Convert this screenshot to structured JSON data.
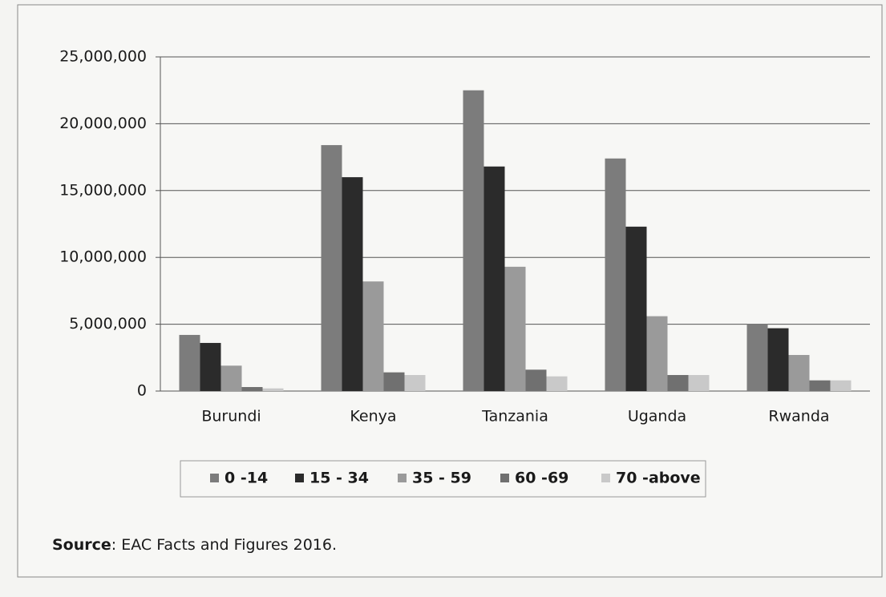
{
  "chart_data": {
    "type": "bar",
    "categories": [
      "Burundi",
      "Kenya",
      "Tanzania",
      "Uganda",
      "Rwanda"
    ],
    "series": [
      {
        "name": "0 -14",
        "color": "#7c7c7c",
        "values": [
          4200000,
          18400000,
          22500000,
          17400000,
          5000000
        ]
      },
      {
        "name": "15 - 34",
        "color": "#2b2b2b",
        "values": [
          3600000,
          16000000,
          16800000,
          12300000,
          4700000
        ]
      },
      {
        "name": "35 - 59",
        "color": "#9a9a9a",
        "values": [
          1900000,
          8200000,
          9300000,
          5600000,
          2700000
        ]
      },
      {
        "name": "60 -69",
        "color": "#707070",
        "values": [
          300000,
          1400000,
          1600000,
          1200000,
          800000
        ]
      },
      {
        "name": "70 -above",
        "color": "#c9c9c9",
        "values": [
          200000,
          1200000,
          1100000,
          1200000,
          800000
        ]
      }
    ],
    "ylim": [
      0,
      25000000
    ],
    "yticks": [
      0,
      {
        "value": 5000000,
        "label": "5,000,000"
      },
      {
        "value": 10000000,
        "label": "10,000,000"
      },
      {
        "value": 15000000,
        "label": "15,000,000"
      },
      {
        "value": 20000000,
        "label": "20,000,000"
      },
      {
        "value": 25000000,
        "label": "25,000,000"
      }
    ],
    "grid": true,
    "legend": "bottom",
    "source_label": "Source",
    "source_text": ": EAC Facts and Figures 2016."
  }
}
